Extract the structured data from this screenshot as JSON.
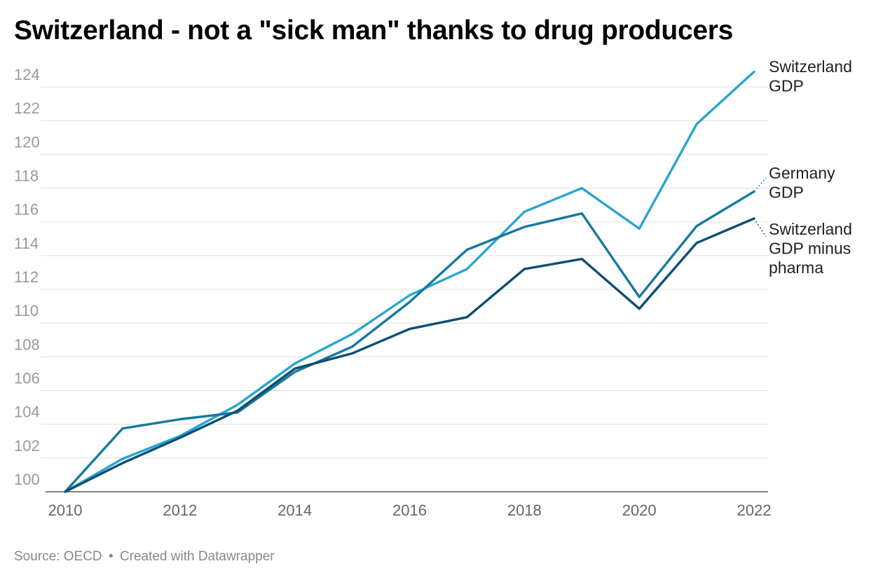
{
  "title": "Switzerland - not a \"sick man\" thanks to drug producers",
  "footer": {
    "source": "Source: OECD",
    "separator": "•",
    "credit": "Created with Datawrapper"
  },
  "chart_data": {
    "type": "line",
    "title": "Switzerland - not a \"sick man\" thanks to drug producers",
    "xlabel": "",
    "ylabel": "",
    "x": [
      2010,
      2011,
      2012,
      2013,
      2014,
      2015,
      2016,
      2017,
      2018,
      2019,
      2020,
      2021,
      2022
    ],
    "xticks": [
      "2010",
      "2012",
      "2014",
      "2016",
      "2018",
      "2020",
      "2022"
    ],
    "yticks": [
      "100",
      "102",
      "104",
      "106",
      "108",
      "110",
      "112",
      "114",
      "116",
      "118",
      "120",
      "122",
      "124"
    ],
    "xlim": [
      2010,
      2022
    ],
    "ylim": [
      100,
      125
    ],
    "grid": true,
    "legend": "direct labels at line ends (right)",
    "series": [
      {
        "name": "Switzerland GDP",
        "label_lines": [
          "Switzerland",
          "GDP"
        ],
        "color": "#28a5cf",
        "values": [
          100,
          101.95,
          103.3,
          105.15,
          107.6,
          109.35,
          111.65,
          113.2,
          116.6,
          118.0,
          115.6,
          121.8,
          124.9
        ]
      },
      {
        "name": "Germany GDP",
        "label_lines": [
          "Germany",
          "GDP"
        ],
        "color": "#18789f",
        "values": [
          100,
          103.75,
          104.3,
          104.7,
          107.1,
          108.6,
          111.25,
          114.35,
          115.7,
          116.5,
          111.55,
          115.75,
          117.8
        ]
      },
      {
        "name": "Switzerland GDP minus pharma",
        "label_lines": [
          "Switzerland",
          "GDP minus",
          "pharma"
        ],
        "color": "#0d4f72",
        "values": [
          100,
          101.7,
          103.2,
          104.8,
          107.3,
          108.2,
          109.65,
          110.35,
          113.2,
          113.8,
          110.85,
          114.75,
          116.2
        ]
      }
    ]
  }
}
